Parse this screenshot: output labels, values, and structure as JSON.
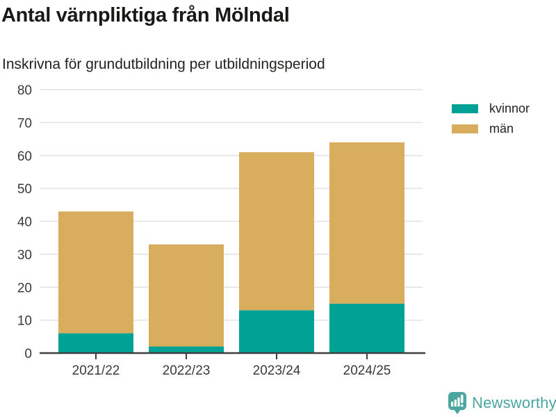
{
  "header": {
    "title": "Antal värnpliktiga från Mölndal",
    "subtitle": "Inskrivna för grundutbildning per utbildningsperiod"
  },
  "chart_data": {
    "type": "bar",
    "stacked": true,
    "title": "Antal värnpliktiga från Mölndal",
    "subtitle": "Inskrivna för grundutbildning per utbildningsperiod",
    "categories": [
      "2021/22",
      "2022/23",
      "2023/24",
      "2024/25"
    ],
    "series": [
      {
        "name": "kvinnor",
        "color": "#00a296",
        "values": [
          6,
          2,
          13,
          15
        ]
      },
      {
        "name": "män",
        "color": "#d9ad5e",
        "values": [
          37,
          31,
          48,
          49
        ]
      }
    ],
    "totals": [
      43,
      33,
      61,
      64
    ],
    "xlabel": "",
    "ylabel": "",
    "ylim": [
      0,
      80
    ],
    "yticks": [
      0,
      10,
      20,
      30,
      40,
      50,
      60,
      70,
      80
    ],
    "grid": true,
    "legend_position": "right",
    "grid_color": "#e1e1e1",
    "axis_color": "#3f3f3f",
    "tick_label_color": "#3a3a3a"
  },
  "branding": {
    "name": "Newsworthy",
    "color": "#4aa69f"
  }
}
